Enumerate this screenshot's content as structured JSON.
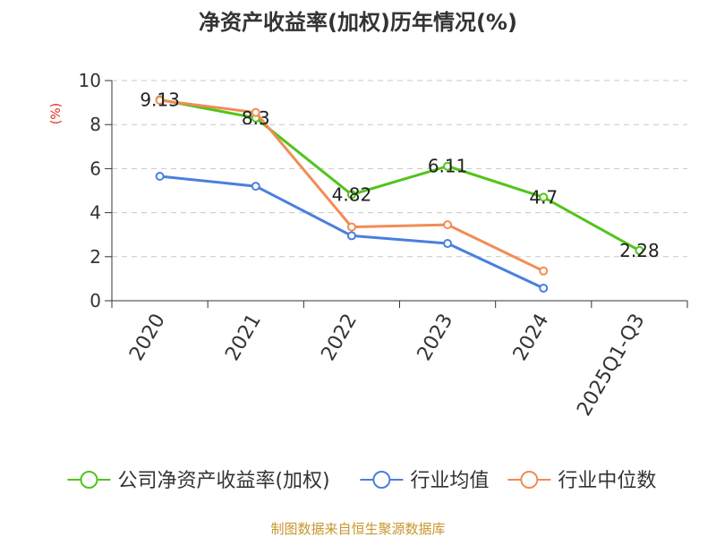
{
  "chart_data": {
    "type": "line",
    "title": "净资产收益率(加权)历年情况(%)",
    "ylabel": "(%)",
    "xlabel": "",
    "categories": [
      "2020",
      "2021",
      "2022",
      "2023",
      "2024",
      "2025Q1-Q3"
    ],
    "ylim": [
      0,
      10
    ],
    "yticks": [
      0,
      2,
      4,
      6,
      8,
      10
    ],
    "grid": true,
    "legend_position": "bottom",
    "series": [
      {
        "name": "公司净资产收益率(加权)",
        "color": "#52c41a",
        "values": [
          9.13,
          8.3,
          4.82,
          6.11,
          4.7,
          2.28
        ],
        "labels": [
          "9.13",
          "8.3",
          "4.82",
          "6.11",
          "4.7",
          "2.28"
        ]
      },
      {
        "name": "行业均值",
        "color": "#4a7fde",
        "values": [
          5.65,
          5.2,
          2.95,
          2.6,
          0.57,
          null
        ]
      },
      {
        "name": "行业中位数",
        "color": "#f28c55",
        "values": [
          9.1,
          8.55,
          3.35,
          3.45,
          1.35,
          null
        ]
      }
    ],
    "source": "制图数据来自恒生聚源数据库"
  }
}
